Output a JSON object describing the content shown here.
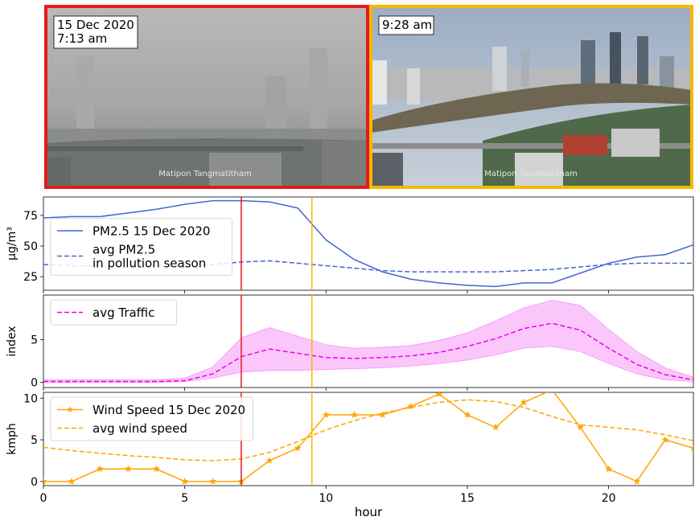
{
  "photos": [
    {
      "caption_line1": "15 Dec 2020",
      "caption_line2": "7:13 am",
      "watermark": "Matipon Tangmatitham",
      "frame_color": "#e31a1c"
    },
    {
      "caption_line1": "9:28 am",
      "caption_line2": "",
      "watermark": "Matipon Tangmatitham",
      "frame_color": "#f5b800"
    }
  ],
  "chart_data": {
    "type": "line",
    "x_label": "hour",
    "x_range": [
      0,
      23
    ],
    "x_ticks": [
      0,
      5,
      10,
      15,
      20
    ],
    "markers": [
      {
        "hour": 7,
        "color": "#e31a1c"
      },
      {
        "hour": 9.5,
        "color": "#f5b800"
      }
    ],
    "panels": [
      {
        "ylabel": "μg/m³",
        "ylim": [
          14,
          90
        ],
        "yticks": [
          25,
          50,
          75
        ],
        "legend_location": "center-left",
        "series": [
          {
            "name": "PM2.5 15 Dec 2020",
            "style": "solid",
            "color": "#4466d4",
            "x": [
              0,
              1,
              2,
              3,
              4,
              5,
              6,
              7,
              8,
              9,
              10,
              11,
              12,
              13,
              14,
              15,
              16,
              17,
              18,
              19,
              20,
              21,
              22,
              23
            ],
            "y": [
              73,
              74,
              74,
              77,
              80,
              84,
              87,
              87,
              86,
              81,
              55,
              39,
              29,
              23,
              20,
              18,
              17,
              20,
              20,
              28,
              36,
              41,
              43,
              51
            ]
          },
          {
            "name": "avg PM2.5\nin pollution season",
            "style": "dashed",
            "color": "#4466d4",
            "x": [
              0,
              1,
              2,
              3,
              4,
              5,
              6,
              7,
              8,
              9,
              10,
              11,
              12,
              13,
              14,
              15,
              16,
              17,
              18,
              19,
              20,
              21,
              22,
              23
            ],
            "y": [
              35,
              34,
              34,
              34,
              34,
              34,
              35,
              37,
              38,
              36,
              34,
              32,
              30,
              29,
              29,
              29,
              29,
              30,
              31,
              33,
              35,
              36,
              36,
              36
            ]
          }
        ]
      },
      {
        "ylabel": "index",
        "ylim": [
          -0.6,
          10.2
        ],
        "yticks": [
          0,
          5
        ],
        "legend_location": "top-left",
        "series": [
          {
            "name": "avg Traffic",
            "style": "dashed",
            "color": "#ee00ee",
            "x": [
              0,
              1,
              2,
              3,
              4,
              5,
              6,
              7,
              8,
              9,
              10,
              11,
              12,
              13,
              14,
              15,
              16,
              17,
              18,
              19,
              20,
              21,
              22,
              23
            ],
            "y": [
              0.1,
              0.1,
              0.1,
              0.1,
              0.1,
              0.2,
              1.0,
              3.0,
              3.9,
              3.4,
              2.9,
              2.8,
              2.9,
              3.1,
              3.5,
              4.2,
              5.1,
              6.3,
              6.9,
              6.1,
              4.0,
              2.1,
              0.9,
              0.3
            ],
            "band_low": [
              0,
              0,
              0,
              0,
              0,
              0.1,
              0.5,
              1.2,
              1.4,
              1.4,
              1.5,
              1.6,
              1.7,
              1.9,
              2.2,
              2.6,
              3.2,
              4.0,
              4.2,
              3.6,
              2.2,
              1.0,
              0.3,
              0.1
            ],
            "band_high": [
              0.3,
              0.3,
              0.3,
              0.3,
              0.3,
              0.5,
              1.8,
              5.2,
              6.4,
              5.4,
              4.4,
              4.0,
              4.1,
              4.3,
              4.9,
              5.8,
              7.2,
              8.7,
              9.6,
              9.0,
              6.2,
              3.6,
              1.7,
              0.6
            ]
          }
        ]
      },
      {
        "ylabel": "kmph",
        "ylim": [
          -0.5,
          10.7
        ],
        "yticks": [
          0,
          5,
          10
        ],
        "legend_location": "top-left",
        "series": [
          {
            "name": "Wind Speed 15 Dec 2020",
            "style": "solid-star",
            "color": "#ffa500",
            "x": [
              0,
              1,
              2,
              3,
              4,
              5,
              6,
              7,
              8,
              9,
              10,
              11,
              12,
              13,
              14,
              15,
              16,
              17,
              18,
              19,
              20,
              21,
              22,
              23
            ],
            "y": [
              0,
              0,
              1.5,
              1.5,
              1.5,
              0,
              0,
              0,
              2.5,
              4,
              8,
              8,
              8,
              9,
              10.5,
              8,
              6.5,
              9.5,
              11,
              6.5,
              1.5,
              0,
              5,
              4
            ]
          },
          {
            "name": "avg wind speed",
            "style": "dashed",
            "color": "#ffa500",
            "x": [
              0,
              1,
              2,
              3,
              4,
              5,
              6,
              7,
              8,
              9,
              10,
              11,
              12,
              13,
              14,
              15,
              16,
              17,
              18,
              19,
              20,
              21,
              22,
              23
            ],
            "y": [
              4.1,
              3.7,
              3.4,
              3.1,
              2.9,
              2.6,
              2.5,
              2.7,
              3.5,
              4.8,
              6.2,
              7.3,
              8.2,
              8.9,
              9.5,
              9.8,
              9.6,
              8.9,
              7.8,
              6.8,
              6.5,
              6.2,
              5.6,
              4.9
            ]
          }
        ]
      }
    ]
  }
}
